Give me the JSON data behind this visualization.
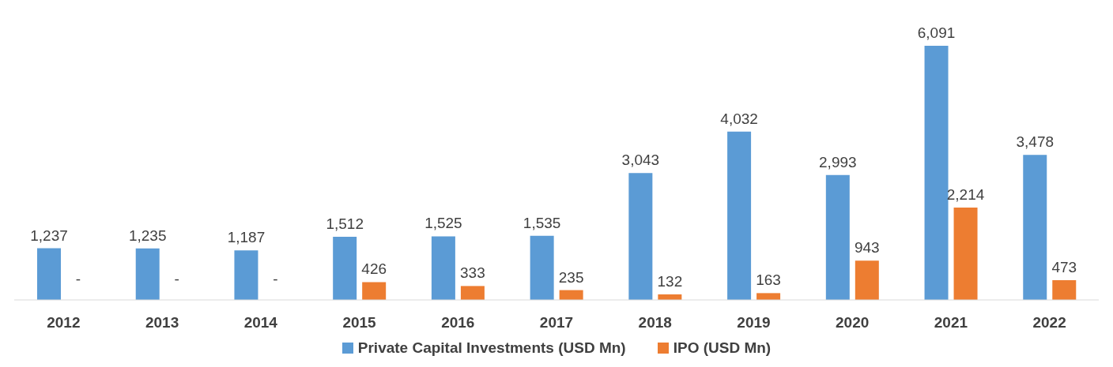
{
  "chart_data": {
    "type": "bar",
    "categories": [
      "2012",
      "2013",
      "2014",
      "2015",
      "2016",
      "2017",
      "2018",
      "2019",
      "2020",
      "2021",
      "2022"
    ],
    "series": [
      {
        "name": "Private Capital Investments (USD Mn)",
        "color": "#5b9bd5",
        "values": [
          1237,
          1235,
          1187,
          1512,
          1525,
          1535,
          3043,
          4032,
          2993,
          6091,
          3478
        ],
        "value_labels": [
          "1,237",
          "1,235",
          "1,187",
          "1,512",
          "1,525",
          "1,535",
          "3,043",
          "4,032",
          "2,993",
          "6,091",
          "3,478"
        ]
      },
      {
        "name": "IPO (USD Mn)",
        "color": "#ed7d31",
        "values": [
          null,
          null,
          null,
          426,
          333,
          235,
          132,
          163,
          943,
          2214,
          473
        ],
        "value_labels": [
          "-",
          "-",
          "-",
          "426",
          "333",
          "235",
          "132",
          "163",
          "943",
          "2,214",
          "473"
        ]
      }
    ],
    "grid": false,
    "legend": "bottom"
  }
}
